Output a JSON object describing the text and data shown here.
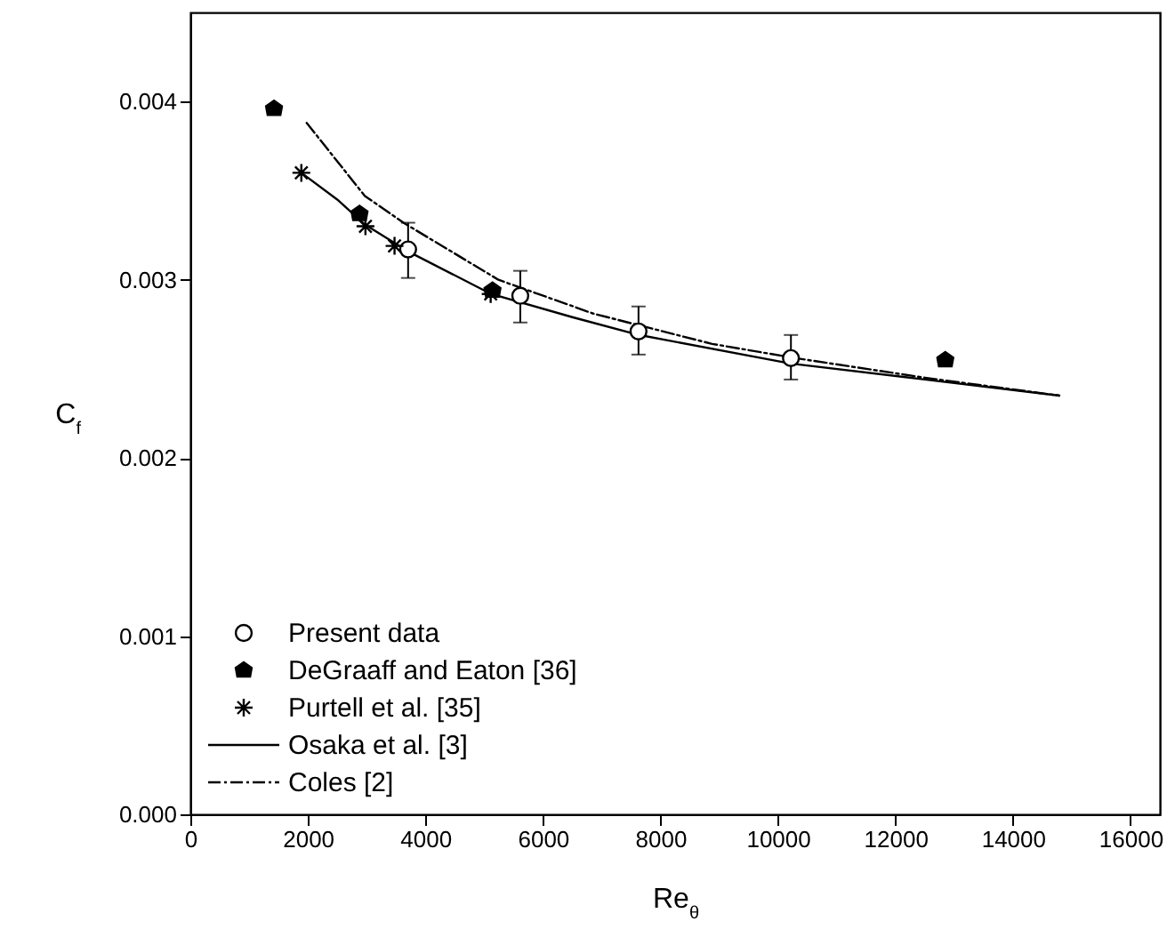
{
  "chart_data": {
    "type": "scatter",
    "xlabel": "Re$_{θ}$",
    "ylabel": "C$_{f}$",
    "xlim": [
      0,
      16500
    ],
    "ylim": [
      0,
      0.0045
    ],
    "xticks": [
      0,
      2000,
      4000,
      6000,
      8000,
      10000,
      12000,
      14000,
      16000
    ],
    "yticks": [
      {
        "value": 0,
        "label": "0.000"
      },
      {
        "value": 0.001,
        "label": "0.001"
      },
      {
        "value": 0.002,
        "label": "0.002"
      },
      {
        "value": 0.003,
        "label": "0.003"
      },
      {
        "value": 0.004,
        "label": "0.004"
      }
    ],
    "legend": "bottom left",
    "grid": false,
    "series": [
      {
        "name": "Present data",
        "marker": "circle",
        "color": "#000000",
        "x": [
          3706,
          5615,
          7627,
          10221
        ],
        "values": [
          0.00317,
          0.00291,
          0.00271,
          0.00256
        ],
        "errors": [
          [
            0.00301,
            0.00332
          ],
          [
            0.00276,
            0.00305
          ],
          [
            0.00258,
            0.00285
          ],
          [
            0.00244,
            0.00269
          ]
        ]
      },
      {
        "name": "DeGraaff and Eaton [36]",
        "marker": "square",
        "color": "#000000",
        "x": [
          1424,
          2879,
          5142,
          12848
        ],
        "values": [
          0.00396,
          0.00337,
          0.00294,
          0.00255
        ]
      },
      {
        "name": "Purtell et al. [35]",
        "marker": "cross",
        "color": "#000000",
        "x": [
          1889,
          2980,
          3475,
          5111
        ],
        "values": [
          0.0036,
          0.0033,
          0.00319,
          0.00292
        ]
      },
      {
        "name": "Osaka et al. [3]",
        "type": "line",
        "line_style": "solid",
        "color": "#000000",
        "x": [
          1889,
          2500,
          2970,
          3700,
          5120,
          6500,
          7636,
          10210,
          12500,
          14788
        ],
        "values": [
          0.0036,
          0.00345,
          0.00331,
          0.00316,
          0.00292,
          0.00279,
          0.00269,
          0.00253,
          0.00244,
          0.00235
        ]
      },
      {
        "name": "Coles [2]",
        "type": "line",
        "line_style": "dashed",
        "color": "#000000",
        "x": [
          1980,
          2970,
          3626,
          5242,
          6858,
          8879,
          10300,
          12500,
          14788
        ],
        "values": [
          0.00388,
          0.00347,
          0.00332,
          0.003,
          0.00281,
          0.00264,
          0.00256,
          0.00245,
          0.00235
        ]
      }
    ]
  }
}
